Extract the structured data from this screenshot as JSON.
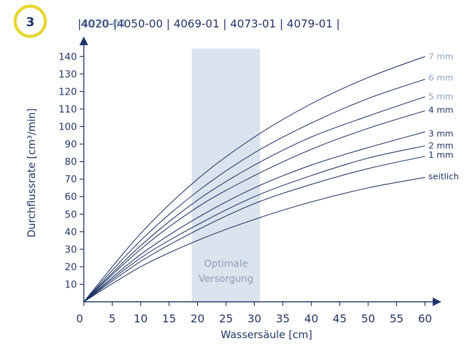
{
  "figure_number": "3",
  "header": {
    "overlap_code": "4070-04",
    "codes": "|4020-|4050-00 | 4069-01 | 4073-01 | 4079-01 |"
  },
  "colors": {
    "accent_yellow": "#e8d632",
    "navy": "#1f3566",
    "band": "#dbe4ee",
    "light_label": "#8fa3c6"
  },
  "chart_data": {
    "type": "line",
    "xlabel": "Wassersäule [cm]",
    "ylabel": "Durchflussrate [cm³/min]",
    "xlim": [
      0,
      62
    ],
    "ylim": [
      0,
      145
    ],
    "x_ticks": [
      0,
      5,
      10,
      15,
      20,
      25,
      30,
      35,
      40,
      45,
      50,
      55,
      60
    ],
    "y_ticks": [
      10,
      20,
      30,
      40,
      50,
      60,
      70,
      80,
      90,
      100,
      110,
      120,
      130,
      140
    ],
    "grid": false,
    "annotation": {
      "text_line1": "Optimale",
      "text_line2": "Versorgung",
      "x_range": [
        19,
        31
      ]
    },
    "series": [
      {
        "name": "7 mm",
        "label_color": "#8fa3c6",
        "x": [
          0,
          10,
          20,
          30,
          40,
          50,
          60
        ],
        "y": [
          0,
          39,
          70,
          94,
          113,
          128,
          140
        ]
      },
      {
        "name": "6 mm",
        "label_color": "#8fa3c6",
        "x": [
          0,
          10,
          20,
          30,
          40,
          50,
          60
        ],
        "y": [
          0,
          35,
          63,
          85,
          102,
          116,
          127
        ]
      },
      {
        "name": "5 mm",
        "label_color": "#8fa3c6",
        "x": [
          0,
          10,
          20,
          30,
          40,
          50,
          60
        ],
        "y": [
          0,
          32,
          58,
          78,
          94,
          106,
          117
        ]
      },
      {
        "name": "4 mm",
        "label_color": "#1f3566",
        "x": [
          0,
          10,
          20,
          30,
          40,
          50,
          60
        ],
        "y": [
          0,
          30,
          54,
          72,
          87,
          99,
          109
        ]
      },
      {
        "name": "3 mm",
        "label_color": "#1f3566",
        "x": [
          0,
          10,
          20,
          30,
          40,
          50,
          60
        ],
        "y": [
          0,
          27,
          48,
          65,
          78,
          88,
          97
        ]
      },
      {
        "name": "2 mm",
        "label_color": "#1f3566",
        "x": [
          0,
          10,
          20,
          30,
          40,
          50,
          60
        ],
        "y": [
          0,
          25,
          44,
          60,
          72,
          82,
          89
        ]
      },
      {
        "name": "1 mm",
        "label_color": "#1f3566",
        "x": [
          0,
          10,
          20,
          30,
          40,
          50,
          60
        ],
        "y": [
          0,
          23,
          41,
          56,
          67,
          76,
          83
        ]
      },
      {
        "name": "seitlich",
        "label_color": "#1f3566",
        "x": [
          0,
          10,
          20,
          30,
          40,
          50,
          60
        ],
        "y": [
          0,
          20,
          35,
          47,
          57,
          65,
          71
        ]
      }
    ]
  }
}
